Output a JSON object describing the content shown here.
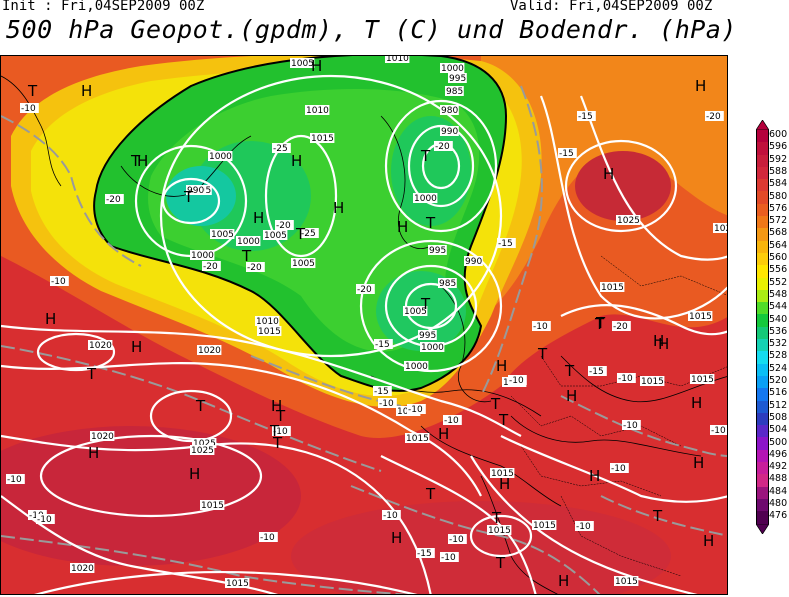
{
  "header": {
    "init": "Init : Fri,04SEP2009 00Z",
    "valid": "Valid: Fri,04SEP2009 00Z",
    "title": "500 hPa Geopot.(gpdm), T (C) und Bodendr. (hPa)"
  },
  "colorbar": {
    "levels": [
      "600",
      "596",
      "592",
      "588",
      "584",
      "580",
      "576",
      "572",
      "568",
      "564",
      "560",
      "556",
      "552",
      "548",
      "544",
      "540",
      "536",
      "532",
      "528",
      "524",
      "520",
      "516",
      "512",
      "508",
      "504",
      "500",
      "496",
      "492",
      "488",
      "484",
      "480",
      "476"
    ],
    "colors": [
      "#b4003c",
      "#c0103c",
      "#c81e3c",
      "#d2283c",
      "#dc3a32",
      "#e24a28",
      "#ea5e20",
      "#f07818",
      "#f49814",
      "#f8b40c",
      "#fccc0a",
      "#ffe600",
      "#e8f000",
      "#aaec14",
      "#50dc28",
      "#14c83c",
      "#14c878",
      "#14d2b4",
      "#14dcf0",
      "#0abef5",
      "#0aa0f5",
      "#1478f0",
      "#1e5ad2",
      "#2d3cbe",
      "#5a28c8",
      "#8c14c8",
      "#b414b4",
      "#c81e9b",
      "#d22887",
      "#9b147d",
      "#6e0a6e",
      "#500050"
    ]
  },
  "map": {
    "isobar_labels": [
      "1005",
      "1010",
      "1000",
      "995",
      "985",
      "980",
      "990",
      "1010",
      "1015",
      "1000",
      "995",
      "990",
      "1000",
      "1005",
      "1000",
      "1005",
      "1000",
      "1005",
      "995",
      "990",
      "985",
      "1000",
      "995",
      "1000",
      "1010",
      "1015",
      "1020",
      "1020",
      "1005",
      "1010",
      "1015",
      "1020",
      "1025",
      "1015",
      "1015",
      "1025",
      "1020",
      "1015",
      "1015",
      "1010",
      "1015",
      "1015",
      "1015",
      "1015",
      "1025",
      "1020",
      "1015",
      "1015"
    ],
    "temp_labels": [
      "-10",
      "-20",
      "-15",
      "-20",
      "-15",
      "-20",
      "-10",
      "-15",
      "-10",
      "-20",
      "-25",
      "-20",
      "-25",
      "-20",
      "-20",
      "-20",
      "-15",
      "-10",
      "-15",
      "-10",
      "-10",
      "-10",
      "-10",
      "-10",
      "-10",
      "-10",
      "-10",
      "-10",
      "-10",
      "-10",
      "-10",
      "-10",
      "-10",
      "-15",
      "-10",
      "-10",
      "-15"
    ],
    "high_symbol": "H",
    "low_symbol": "T"
  }
}
